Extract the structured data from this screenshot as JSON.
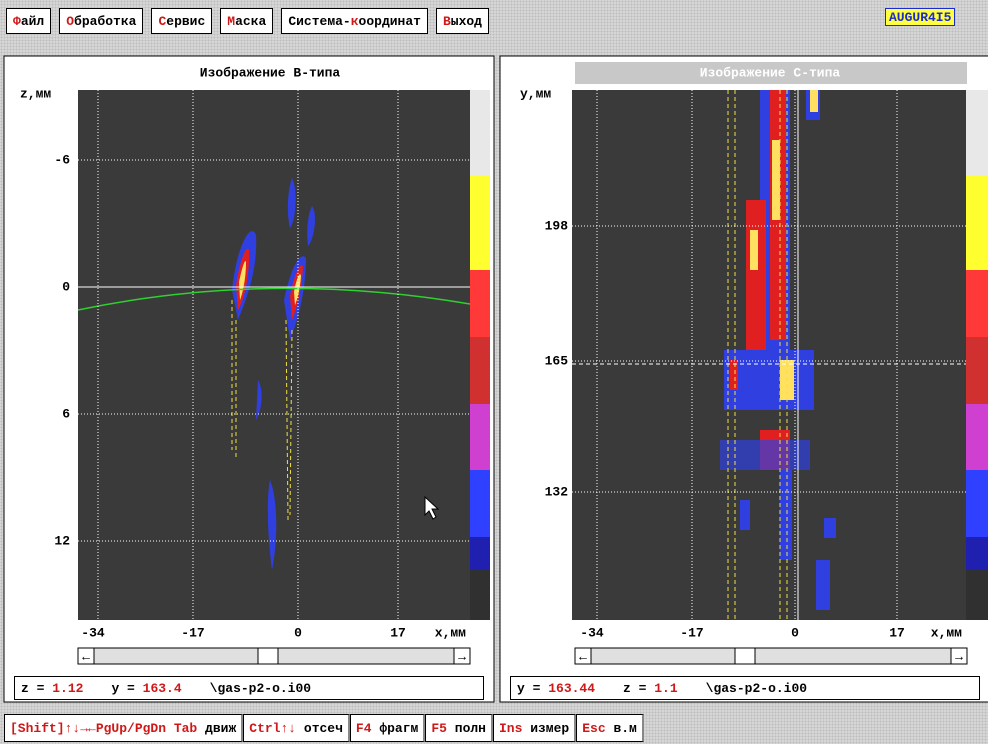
{
  "menu": [
    {
      "key": "Ф",
      "post": "айл"
    },
    {
      "key": "О",
      "post": "бработка"
    },
    {
      "key": "С",
      "post": "ервис"
    },
    {
      "key": "М",
      "post": "аска"
    },
    {
      "pre": "Система-",
      "key": "к",
      "post": "оординат"
    },
    {
      "key": "В",
      "post": "ыход"
    }
  ],
  "logo": "AUGUR4I5",
  "panels": [
    {
      "title": "Изображение В-типа",
      "y_label": "z,мм",
      "yticks": [
        -6,
        0,
        6,
        12
      ],
      "xticks": [
        -34,
        -17,
        0,
        17
      ],
      "x_label": "x,мм",
      "status": [
        {
          "name": "z =",
          "value": 1.12
        },
        {
          "name": "y =",
          "value": 163.4
        }
      ],
      "file": "\\gas-p2-o.i00"
    },
    {
      "title": "Изображение С-типа",
      "y_label": "y,мм",
      "yticks": [
        198,
        165,
        132
      ],
      "xticks": [
        -34,
        -17,
        0,
        17
      ],
      "x_label": "x,мм",
      "status": [
        {
          "name": "y =",
          "value": 163.44
        },
        {
          "name": "z =",
          "value": 1.1
        }
      ],
      "file": "\\gas-p2-o.i00"
    }
  ],
  "help": [
    {
      "key": "[Shift]↑↓→←PgUp/PgDn Tab",
      "label": "движ"
    },
    {
      "key": "Ctrl↑↓",
      "label": "отсеч"
    },
    {
      "key": "F4",
      "label": "фрагм"
    },
    {
      "key": "F5",
      "label": "полн"
    },
    {
      "key": "Ins",
      "label": "измер"
    },
    {
      "key": "Esc",
      "label": "в.м"
    }
  ]
}
